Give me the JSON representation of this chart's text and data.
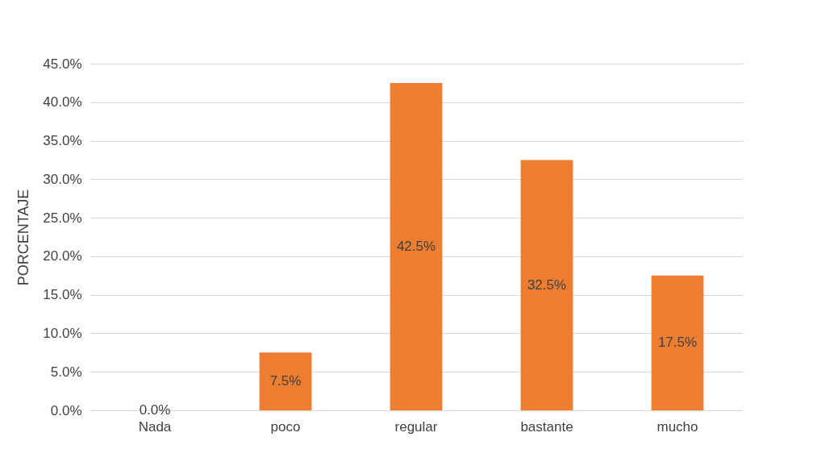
{
  "chart_data": {
    "type": "bar",
    "ylabel": "PORCENTAJE",
    "categories": [
      "Nada",
      "poco",
      "regular",
      "bastante",
      "mucho"
    ],
    "values": [
      0,
      7.5,
      42.5,
      32.5,
      17.5
    ],
    "value_labels": [
      "0.0%",
      "7.5%",
      "42.5%",
      "32.5%",
      "17.5%"
    ],
    "color": "#ed7d31",
    "ylim": [
      0,
      45
    ],
    "yticks": [
      {
        "value": 0,
        "label": "0.0%"
      },
      {
        "value": 5,
        "label": "5.0%"
      },
      {
        "value": 10,
        "label": "10.0%"
      },
      {
        "value": 15,
        "label": "15.0%"
      },
      {
        "value": 20,
        "label": "20.0%"
      },
      {
        "value": 25,
        "label": "25.0%"
      },
      {
        "value": 30,
        "label": "30.0%"
      },
      {
        "value": 35,
        "label": "35.0%"
      },
      {
        "value": 40,
        "label": "40.0%"
      },
      {
        "value": 45,
        "label": "45.0%"
      }
    ],
    "grid": "y"
  }
}
